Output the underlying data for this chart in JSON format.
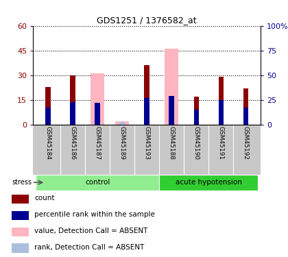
{
  "title": "GDS1251 / 1376582_at",
  "samples": [
    "GSM45184",
    "GSM45186",
    "GSM45187",
    "GSM45189",
    "GSM45193",
    "GSM45188",
    "GSM45190",
    "GSM45191",
    "GSM45192"
  ],
  "groups": [
    {
      "name": "control",
      "indices": [
        0,
        1,
        2,
        3,
        4
      ],
      "color": "#90EE90"
    },
    {
      "name": "acute hypotension",
      "indices": [
        5,
        6,
        7,
        8
      ],
      "color": "#32CD32"
    }
  ],
  "count_values": [
    23,
    30,
    0,
    0,
    36,
    0,
    17,
    29,
    22
  ],
  "pink_values": [
    0,
    0,
    31,
    2,
    0,
    46,
    0,
    0,
    0
  ],
  "lavender_values": [
    0,
    0,
    22,
    3,
    0,
    29,
    0,
    0,
    0
  ],
  "blue_values": [
    17,
    23,
    22,
    0,
    27,
    29,
    15,
    25,
    17
  ],
  "ylim_left": [
    0,
    60
  ],
  "ylim_right": [
    0,
    100
  ],
  "yticks_left": [
    0,
    15,
    30,
    45,
    60
  ],
  "yticks_right": [
    0,
    25,
    50,
    75,
    100
  ],
  "ytick_labels_left": [
    "0",
    "15",
    "30",
    "45",
    "60"
  ],
  "ytick_labels_right": [
    "0",
    "25",
    "50",
    "75",
    "100%"
  ],
  "color_count": "#8B0000",
  "color_pink": "#FFB6C1",
  "color_lavender": "#AABFDD",
  "color_blue": "#000090",
  "label_area_bg": "#C8C8C8",
  "stress_label": "stress",
  "legend_items": [
    {
      "label": "count",
      "color": "#8B0000"
    },
    {
      "label": "percentile rank within the sample",
      "color": "#000090"
    },
    {
      "label": "value, Detection Call = ABSENT",
      "color": "#FFB6C1"
    },
    {
      "label": "rank, Detection Call = ABSENT",
      "color": "#AABFDD"
    }
  ]
}
